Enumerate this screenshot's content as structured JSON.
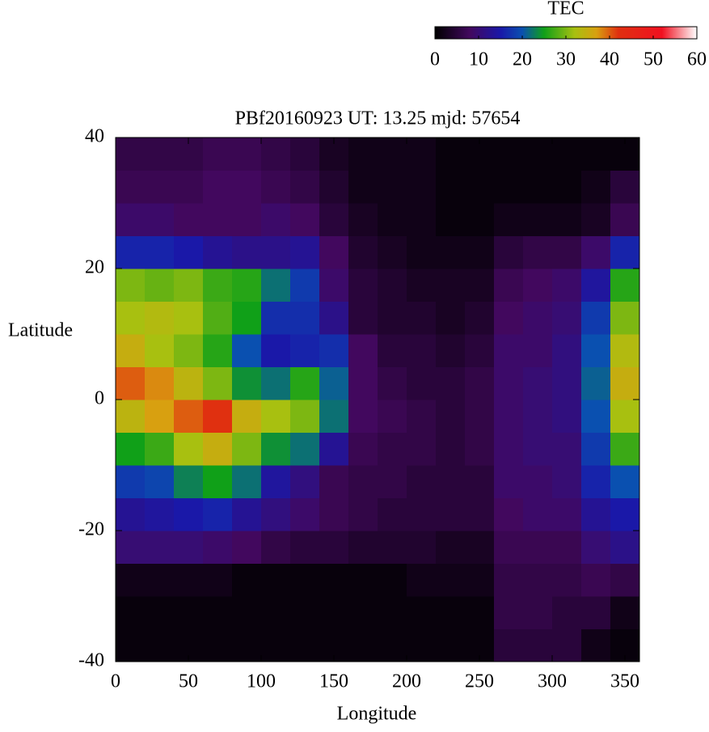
{
  "chart_data": {
    "type": "heatmap",
    "title": "PBf20160923  UT: 13.25  mjd: 57654",
    "xlabel": "Longitude",
    "ylabel": "Latitude",
    "x_edges": [
      0,
      20,
      40,
      60,
      80,
      100,
      120,
      140,
      160,
      180,
      200,
      220,
      240,
      260,
      280,
      300,
      320,
      340,
      360
    ],
    "y_edges": [
      -40,
      -35,
      -30,
      -25,
      -20,
      -15,
      -10,
      -5,
      0,
      5,
      10,
      15,
      20,
      25,
      30,
      35,
      40
    ],
    "z": [
      [
        1,
        1,
        1,
        1,
        1,
        1,
        1,
        1,
        1,
        1,
        1,
        1,
        1,
        5,
        5,
        5,
        2,
        1
      ],
      [
        1,
        1,
        1,
        1,
        1,
        1,
        1,
        1,
        1,
        1,
        1,
        1,
        1,
        6,
        6,
        5,
        5,
        2
      ],
      [
        2,
        2,
        2,
        2,
        1,
        1,
        1,
        1,
        1,
        1,
        2,
        2,
        2,
        6,
        6,
        6,
        7,
        6
      ],
      [
        10,
        10,
        10,
        9,
        8,
        6,
        5,
        5,
        4,
        4,
        4,
        3,
        3,
        7,
        7,
        7,
        10,
        12
      ],
      [
        13,
        14,
        15,
        16,
        13,
        11,
        9,
        7,
        6,
        5,
        5,
        5,
        5,
        8,
        9,
        9,
        13,
        15
      ],
      [
        18,
        19,
        23,
        25,
        22,
        14,
        11,
        7,
        6,
        6,
        5,
        5,
        5,
        9,
        9,
        10,
        16,
        20
      ],
      [
        25,
        27,
        32,
        35,
        30,
        24,
        22,
        13,
        7,
        6,
        6,
        5,
        6,
        9,
        10,
        10,
        18,
        27
      ],
      [
        34,
        37,
        40,
        42,
        35,
        32,
        30,
        22,
        8,
        7,
        6,
        5,
        6,
        9,
        10,
        11,
        20,
        32
      ],
      [
        40,
        38,
        34,
        30,
        24,
        22,
        26,
        21,
        8,
        6,
        5,
        5,
        6,
        9,
        10,
        11,
        21,
        35
      ],
      [
        35,
        32,
        30,
        26,
        20,
        15,
        16,
        17,
        8,
        5,
        5,
        4,
        5,
        9,
        9,
        11,
        20,
        33
      ],
      [
        32,
        33,
        32,
        28,
        25,
        17,
        17,
        12,
        5,
        4,
        4,
        3,
        4,
        8,
        9,
        10,
        18,
        30
      ],
      [
        30,
        29,
        30,
        27,
        26,
        22,
        18,
        9,
        5,
        4,
        3,
        3,
        3,
        7,
        8,
        9,
        14,
        26
      ],
      [
        16,
        16,
        15,
        13,
        12,
        12,
        13,
        8,
        4,
        3,
        2,
        2,
        2,
        5,
        6,
        6,
        9,
        16
      ],
      [
        9,
        9,
        8,
        8,
        8,
        9,
        8,
        5,
        3,
        2,
        2,
        1,
        1,
        2,
        2,
        2,
        3,
        7
      ],
      [
        7,
        7,
        7,
        8,
        8,
        7,
        6,
        4,
        2,
        2,
        2,
        1,
        1,
        1,
        1,
        1,
        2,
        5
      ],
      [
        6,
        6,
        6,
        7,
        7,
        6,
        5,
        3,
        2,
        2,
        2,
        1,
        1,
        1,
        1,
        1,
        1,
        1
      ]
    ],
    "xlim": [
      0,
      360
    ],
    "ylim": [
      -40,
      40
    ],
    "xticks": [
      0,
      50,
      100,
      150,
      200,
      250,
      300,
      350
    ],
    "yticks": [
      -40,
      -20,
      0,
      20,
      40
    ],
    "colorbar": {
      "label": "TEC",
      "lim": [
        0,
        60
      ],
      "ticks": [
        0,
        10,
        20,
        30,
        40,
        50,
        60
      ]
    },
    "colorscale": [
      {
        "value": 0,
        "color": "#000000"
      },
      {
        "value": 8,
        "color": "#42085e"
      },
      {
        "value": 15,
        "color": "#1a18a8"
      },
      {
        "value": 20,
        "color": "#0a50b0"
      },
      {
        "value": 25,
        "color": "#10a018"
      },
      {
        "value": 32,
        "color": "#a8c010"
      },
      {
        "value": 37,
        "color": "#d8a010"
      },
      {
        "value": 42,
        "color": "#e03010"
      },
      {
        "value": 52,
        "color": "#f01020"
      },
      {
        "value": 60,
        "color": "#ffffff"
      }
    ]
  }
}
